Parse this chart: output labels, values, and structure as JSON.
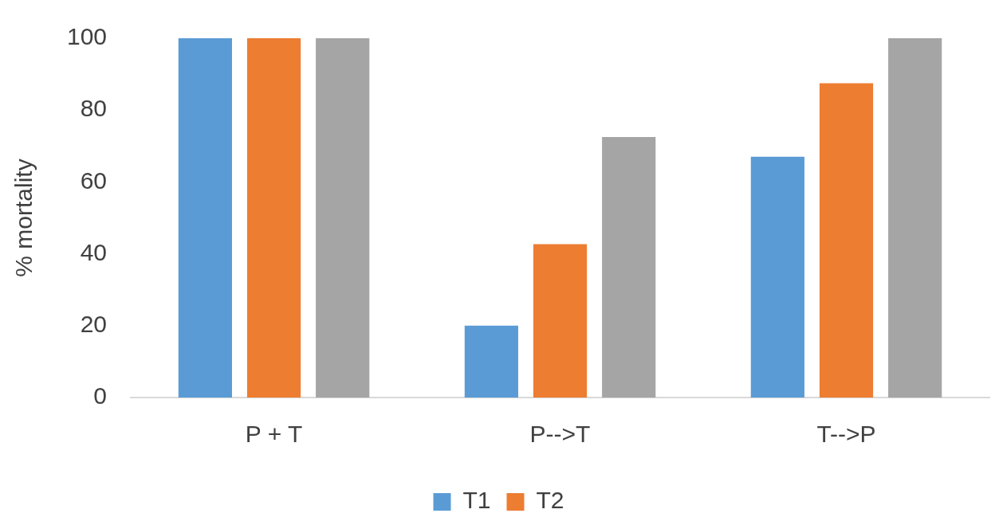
{
  "chart_data": {
    "type": "bar",
    "ylabel": "% mortality",
    "categories": [
      "P + T",
      "P-->T",
      "T-->P"
    ],
    "series": [
      {
        "name": "T1",
        "color": "#5b9bd5",
        "values": [
          100,
          20,
          67
        ]
      },
      {
        "name": "T2",
        "color": "#ed7d31",
        "values": [
          100,
          42.7,
          87.5
        ]
      },
      {
        "color": "#a5a5a5",
        "values": [
          100,
          72.5,
          100
        ]
      }
    ],
    "ylim": [
      0,
      100
    ],
    "yticks": [
      0,
      20,
      40,
      60,
      80,
      100
    ],
    "grid": false,
    "legend": "bottom"
  }
}
